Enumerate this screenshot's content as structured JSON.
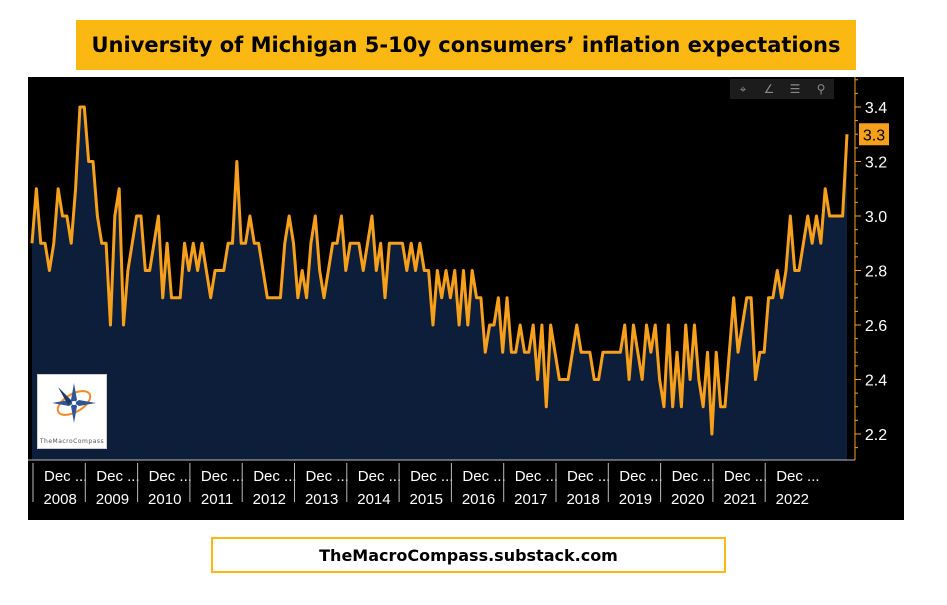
{
  "title": "University of Michigan 5-10y consumers’ inflation expectations",
  "footer": "TheMacroCompass.substack.com",
  "toolbar": {
    "icons": [
      "crosshair-icon",
      "pencil-icon",
      "list-icon",
      "search-icon"
    ],
    "glyphs": [
      "⌖",
      "∠",
      "☰",
      "⚲"
    ]
  },
  "logo": {
    "text": "TheMacroCompass"
  },
  "colors": {
    "line": "#f7a01c",
    "area": "#0c1e3a",
    "background": "#000000",
    "accent": "#fbb813"
  },
  "chart_data": {
    "type": "area",
    "x_start": "2007-12",
    "x_end": "2022-02",
    "frequency": "monthly",
    "x_tick_labels": [
      "Dec ...",
      "Dec ...",
      "Dec ...",
      "Dec ...",
      "Dec ...",
      "Dec ...",
      "Dec ...",
      "Dec ...",
      "Dec ...",
      "Dec ...",
      "Dec ...",
      "Dec ...",
      "Dec ...",
      "Dec ...",
      "Dec ..."
    ],
    "x_year_labels": [
      "2008",
      "2009",
      "2010",
      "2011",
      "2012",
      "2013",
      "2014",
      "2015",
      "2016",
      "2017",
      "2018",
      "2019",
      "2020",
      "2021",
      "2022"
    ],
    "y_ticks": [
      "3.4",
      "3.2",
      "3.0",
      "2.8",
      "2.6",
      "2.4",
      "2.2"
    ],
    "ylim": [
      2.1,
      3.5
    ],
    "last_value": "3.3",
    "values": [
      2.9,
      3.1,
      2.9,
      2.9,
      2.8,
      2.9,
      3.1,
      3.0,
      3.0,
      2.9,
      3.1,
      3.4,
      3.4,
      3.2,
      3.2,
      3.0,
      2.9,
      2.9,
      2.6,
      3.0,
      3.1,
      2.6,
      2.8,
      2.9,
      3.0,
      3.0,
      2.8,
      2.8,
      2.9,
      3.0,
      2.7,
      2.9,
      2.7,
      2.7,
      2.7,
      2.9,
      2.8,
      2.9,
      2.8,
      2.9,
      2.8,
      2.7,
      2.8,
      2.8,
      2.8,
      2.9,
      2.9,
      3.2,
      2.9,
      2.9,
      3.0,
      2.9,
      2.9,
      2.8,
      2.7,
      2.7,
      2.7,
      2.7,
      2.9,
      3.0,
      2.9,
      2.7,
      2.8,
      2.7,
      2.9,
      3.0,
      2.8,
      2.7,
      2.8,
      2.9,
      2.9,
      3.0,
      2.8,
      2.9,
      2.9,
      2.9,
      2.8,
      2.9,
      3.0,
      2.8,
      2.9,
      2.7,
      2.9,
      2.9,
      2.9,
      2.9,
      2.8,
      2.9,
      2.8,
      2.9,
      2.8,
      2.8,
      2.6,
      2.8,
      2.7,
      2.8,
      2.7,
      2.8,
      2.6,
      2.8,
      2.6,
      2.8,
      2.7,
      2.7,
      2.5,
      2.6,
      2.6,
      2.7,
      2.5,
      2.7,
      2.5,
      2.5,
      2.6,
      2.5,
      2.5,
      2.6,
      2.4,
      2.6,
      2.3,
      2.6,
      2.5,
      2.4,
      2.4,
      2.4,
      2.5,
      2.6,
      2.5,
      2.5,
      2.5,
      2.4,
      2.4,
      2.5,
      2.5,
      2.5,
      2.5,
      2.5,
      2.6,
      2.4,
      2.6,
      2.5,
      2.4,
      2.6,
      2.5,
      2.6,
      2.4,
      2.3,
      2.6,
      2.3,
      2.5,
      2.3,
      2.6,
      2.4,
      2.6,
      2.4,
      2.3,
      2.5,
      2.2,
      2.5,
      2.3,
      2.3,
      2.5,
      2.7,
      2.5,
      2.6,
      2.7,
      2.7,
      2.4,
      2.5,
      2.5,
      2.7,
      2.7,
      2.8,
      2.7,
      2.8,
      3.0,
      2.8,
      2.8,
      2.9,
      3.0,
      2.9,
      3.0,
      2.9,
      3.1,
      3.0,
      3.0,
      3.0,
      3.0,
      3.3
    ]
  }
}
